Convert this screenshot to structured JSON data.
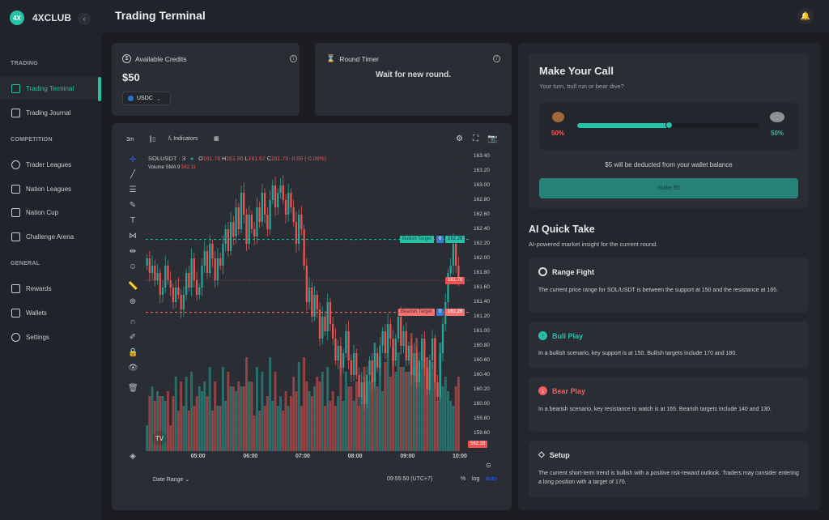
{
  "app": {
    "logo": "4XCLUB",
    "title": "Trading Terminal"
  },
  "sidebar": {
    "sections": [
      {
        "label": "TRADING",
        "items": [
          {
            "label": "Trading Terminal",
            "icon": "terminal-icon",
            "active": true
          },
          {
            "label": "Trading Journal",
            "icon": "journal-icon"
          }
        ]
      },
      {
        "label": "COMPETITION",
        "items": [
          {
            "label": "Trader Leagues",
            "icon": "trophy-icon"
          },
          {
            "label": "Nation Leagues",
            "icon": "crown-icon"
          },
          {
            "label": "Nation Cup",
            "icon": "cup-icon"
          },
          {
            "label": "Challenge Arena",
            "icon": "arena-icon"
          }
        ]
      },
      {
        "label": "GENERAL",
        "items": [
          {
            "label": "Rewards",
            "icon": "gift-icon"
          },
          {
            "label": "Wallets",
            "icon": "wallet-icon"
          },
          {
            "label": "Settings",
            "icon": "gear-icon"
          }
        ]
      }
    ]
  },
  "credits": {
    "label": "Available Credits",
    "value": "$50",
    "currency": "USDC"
  },
  "timer": {
    "label": "Round Timer",
    "status": "Wait for new round."
  },
  "chart": {
    "interval": "3m",
    "indicators": "Indicators",
    "symbol": "SOLUSDT · 3",
    "o": "O",
    "ov": "161.78",
    "h": "H",
    "hv": "161.80",
    "l": "L",
    "lv": "161.67",
    "c": "C",
    "cv": "161.70",
    "change": "-0.09 (-0.06%)",
    "volume_label": "Volume SMA 9",
    "volume_value": "562.11",
    "bullish_label": "Bullish Target",
    "bullish_price": "162.26",
    "bearish_label": "Bearish Target",
    "bearish_price": "161.26",
    "last_price": "161.70",
    "last_volume": "562.33",
    "date_range": "Date Range",
    "clock": "09:55:50 (UTC+7)",
    "pct": "%",
    "log": "log",
    "auto": "auto",
    "colors": {
      "up": "#26a69a",
      "down": "#ef5350"
    }
  },
  "chart_data": {
    "type": "candlestick",
    "symbol": "SOLUSDT",
    "interval": "3m",
    "ylim": [
      159.5,
      163.5
    ],
    "y_ticks": [
      "163.40",
      "163.20",
      "163.00",
      "162.80",
      "162.60",
      "162.40",
      "162.20",
      "162.00",
      "161.80",
      "161.60",
      "161.40",
      "161.20",
      "161.00",
      "160.80",
      "160.60",
      "160.40",
      "160.20",
      "160.00",
      "159.80",
      "159.60"
    ],
    "x_ticks": [
      "05:00",
      "06:00",
      "07:00",
      "08:00",
      "09:00",
      "10:00"
    ],
    "start_open": 161.9,
    "closes": [
      162.0,
      161.8,
      161.9,
      161.7,
      161.8,
      161.5,
      161.6,
      161.9,
      161.7,
      161.6,
      161.4,
      161.6,
      161.5,
      161.3,
      161.5,
      161.8,
      161.6,
      162.0,
      161.7,
      161.5,
      161.6,
      161.9,
      162.1,
      161.8,
      162.2,
      162.0,
      161.7,
      162.0,
      161.9,
      162.2,
      162.4,
      162.1,
      162.5,
      162.3,
      162.7,
      162.4,
      162.9,
      162.6,
      162.2,
      162.6,
      162.4,
      162.3,
      162.7,
      162.5,
      162.9,
      162.6,
      162.4,
      162.8,
      163.0,
      162.7,
      162.9,
      163.0,
      162.8,
      162.6,
      162.9,
      162.7,
      162.5,
      162.2,
      162.6,
      162.4,
      161.9,
      161.4,
      161.6,
      161.2,
      161.5,
      161.3,
      160.9,
      161.2,
      161.0,
      161.4,
      161.1,
      160.9,
      160.6,
      160.8,
      160.5,
      160.7,
      161.0,
      160.6,
      160.4,
      160.7,
      160.4,
      160.1,
      160.3,
      160.0,
      160.4,
      160.6,
      160.3,
      160.7,
      160.5,
      160.8,
      161.0,
      160.7,
      161.1,
      160.9,
      160.6,
      160.9,
      161.2,
      160.8,
      161.0,
      160.6,
      160.8,
      160.4,
      160.7,
      160.3,
      160.6,
      160.9,
      160.5,
      160.2,
      160.6,
      160.9,
      160.3,
      160.1,
      160.7,
      161.1,
      161.4,
      161.8,
      161.9,
      162.2,
      161.9,
      161.7
    ],
    "bullish_target": 162.26,
    "bearish_target": 161.26,
    "last": 161.7
  },
  "call": {
    "title": "Make Your Call",
    "subtitle": "Your turn, bull run or bear dive?",
    "bear_pct": "50%",
    "bull_pct": "50%",
    "bull_fraction": 0.5,
    "note": "$5 will be deducted from your wallet balance",
    "stake": "Stake $5"
  },
  "ai": {
    "title": "AI Quick Take",
    "subtitle": "AI-powered market insight for the current round.",
    "cards": [
      {
        "title": "Range Fight",
        "body": "The current price range for SOL/USDT is between the support at 150 and the resistance at 165."
      },
      {
        "title": "Bull Play",
        "body": "In a bullish scenario, key support is at 150. Bullish targets include 170 and 180."
      },
      {
        "title": "Bear Play",
        "body": "In a bearish scenario, key resistance to watch is at 165. Bearish targets include 140 and 130."
      },
      {
        "title": "Setup",
        "body": "The current short-term trend is bullish with a positive risk-reward outlook. Traders may consider entering a long position with a target of 170."
      }
    ]
  }
}
